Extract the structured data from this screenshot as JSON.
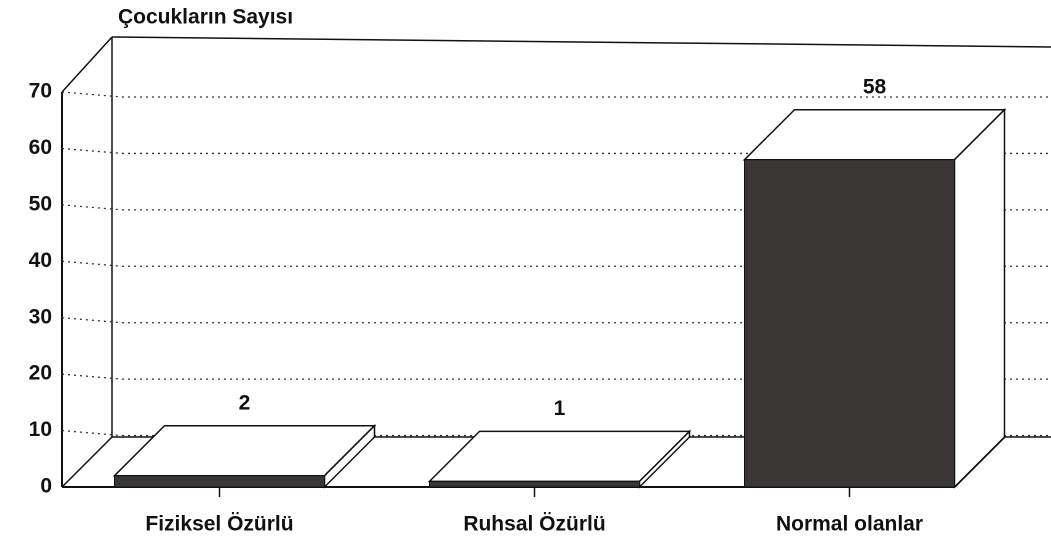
{
  "chart_data": {
    "type": "bar3d",
    "title": "Çocukların Sayısı",
    "categories": [
      "Fiziksel Özürlü",
      "Ruhsal Özürlü",
      "Normal olanlar"
    ],
    "values": [
      2,
      1,
      58
    ],
    "color": "#3a3636",
    "ylim": [
      0,
      70
    ],
    "yticks": [
      0,
      10,
      20,
      30,
      40,
      50,
      60,
      70
    ],
    "grid": true
  }
}
